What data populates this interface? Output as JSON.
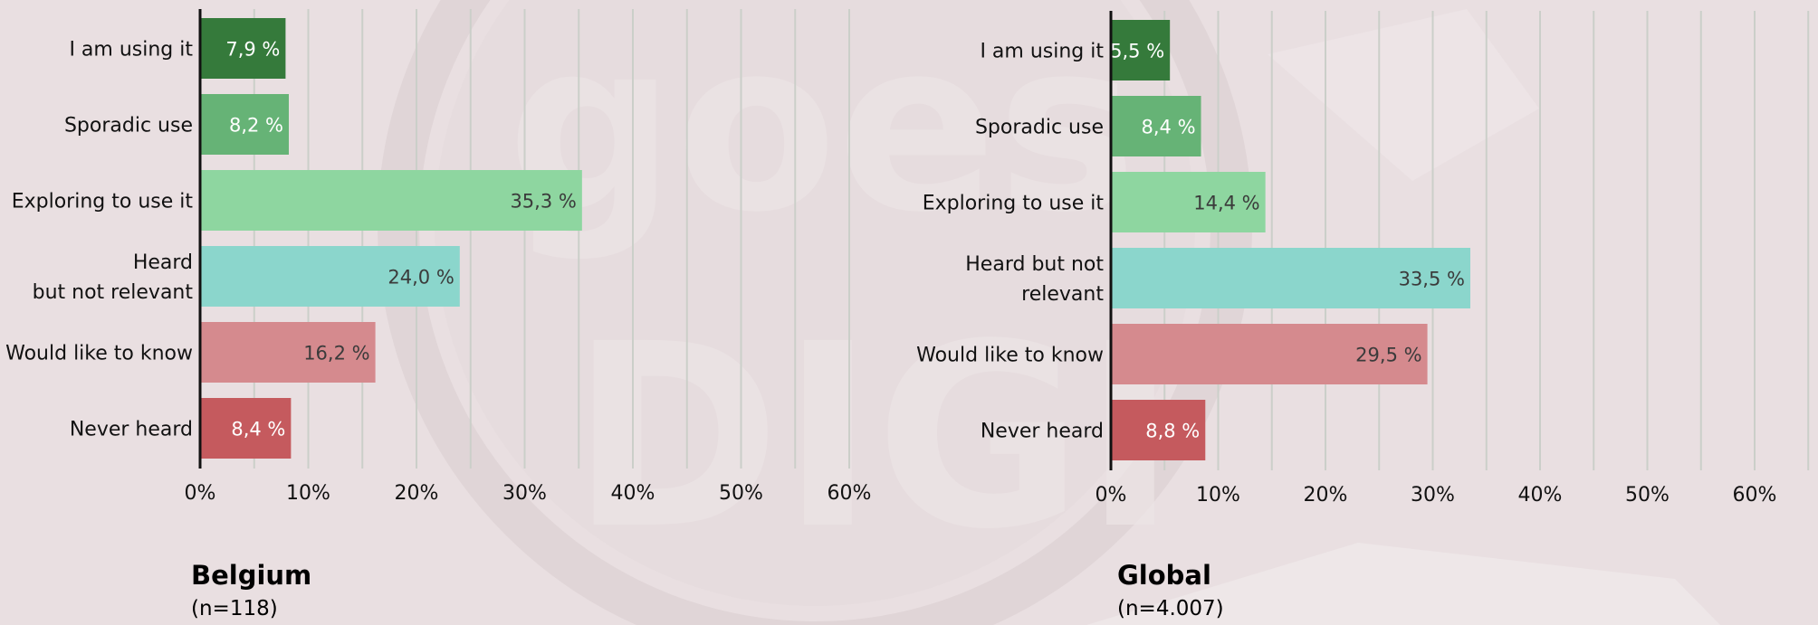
{
  "colors": {
    "background": "#e9dfe1",
    "grid": "#cbcfc9",
    "axis": "#111111",
    "bar_colors": [
      "#357a3b",
      "#66b376",
      "#8ed6a0",
      "#8bd6cc",
      "#d58a8e",
      "#c55a5e"
    ],
    "label_colors": [
      "#ffffff",
      "#ffffff",
      "#3b3b3b",
      "#3b3b3b",
      "#3b3b3b",
      "#ffffff"
    ]
  },
  "chart_data": [
    {
      "type": "bar",
      "orientation": "horizontal",
      "categories": [
        [
          "I am using it"
        ],
        [
          "Sporadic use"
        ],
        [
          "Exploring to use it"
        ],
        [
          "Heard",
          "but not relevant"
        ],
        [
          "Would like to know"
        ],
        [
          "Never heard"
        ]
      ],
      "values": [
        7.9,
        8.2,
        35.3,
        24.0,
        16.2,
        8.4
      ],
      "data_labels": [
        "7,9 %",
        "8,2 %",
        "35,3 %",
        "24,0 %",
        "16,2 %",
        "8,4 %"
      ],
      "x_ticks": [
        "0%",
        "10%",
        "20%",
        "30%",
        "40%",
        "50%",
        "60%"
      ],
      "xlim": [
        0,
        62
      ],
      "grid": "vertical, every 5%",
      "caption_title": "Belgium",
      "caption_n": "(n=118)"
    },
    {
      "type": "bar",
      "orientation": "horizontal",
      "categories": [
        [
          "I am using it"
        ],
        [
          "Sporadic use"
        ],
        [
          "Exploring to use it"
        ],
        [
          "Heard but not",
          "relevant"
        ],
        [
          "Would like to know"
        ],
        [
          "Never heard"
        ]
      ],
      "values": [
        5.5,
        8.4,
        14.4,
        33.5,
        29.5,
        8.8
      ],
      "data_labels": [
        "5,5 %",
        "8,4 %",
        "14,4 %",
        "33,5 %",
        "29,5 %",
        "8,8 %"
      ],
      "x_ticks": [
        "0%",
        "10%",
        "20%",
        "30%",
        "40%",
        "50%",
        "60%"
      ],
      "xlim": [
        0,
        65
      ],
      "grid": "vertical, every 5%",
      "caption_title": "Global",
      "caption_n": "(n=4.007)"
    }
  ]
}
